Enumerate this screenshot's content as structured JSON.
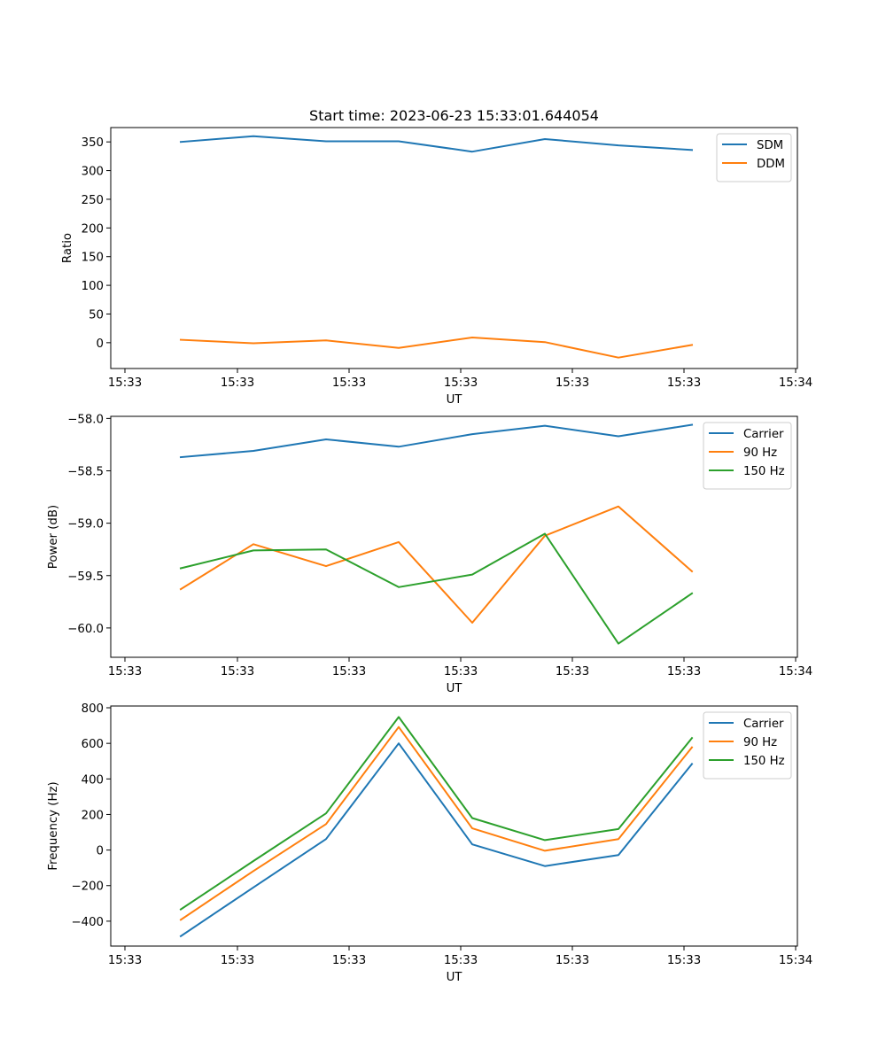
{
  "chart_data": [
    {
      "type": "line",
      "title": "Start time: 2023-06-23 15:33:01.644054",
      "xlabel": "UT",
      "ylabel": "Ratio",
      "x_tick_labels": [
        "15:33",
        "15:33",
        "15:33",
        "15:33",
        "15:33",
        "15:33",
        "15:34"
      ],
      "yticks": [
        0,
        50,
        100,
        150,
        200,
        250,
        300,
        350
      ],
      "ylim": [
        -45,
        375
      ],
      "legend_position": "upper right",
      "series": [
        {
          "name": "SDM",
          "color": "#1f77b4",
          "values": [
            350,
            360,
            351,
            351,
            333,
            355,
            344,
            336
          ]
        },
        {
          "name": "DDM",
          "color": "#ff7f0e",
          "values": [
            5,
            -1,
            4,
            -9,
            9,
            1,
            -26,
            -4
          ]
        }
      ]
    },
    {
      "type": "line",
      "title": "",
      "xlabel": "UT",
      "ylabel": "Power (dB)",
      "x_tick_labels": [
        "15:33",
        "15:33",
        "15:33",
        "15:33",
        "15:33",
        "15:33",
        "15:34"
      ],
      "yticks": [
        -60.0,
        -59.5,
        -59.0,
        -58.5,
        -58.0
      ],
      "ytick_labels": [
        "−60.0",
        "−59.5",
        "−59.0",
        "−58.5",
        "−58.0"
      ],
      "ylim": [
        -60.28,
        -57.98
      ],
      "legend_position": "upper right",
      "series": [
        {
          "name": "Carrier",
          "color": "#1f77b4",
          "values": [
            -58.37,
            -58.31,
            -58.2,
            -58.27,
            -58.15,
            -58.07,
            -58.17,
            -58.06
          ]
        },
        {
          "name": "90 Hz",
          "color": "#ff7f0e",
          "values": [
            -59.63,
            -59.2,
            -59.41,
            -59.18,
            -59.95,
            -59.12,
            -58.84,
            -59.46
          ]
        },
        {
          "name": "150 Hz",
          "color": "#2ca02c",
          "values": [
            -59.43,
            -59.26,
            -59.25,
            -59.61,
            -59.49,
            -59.1,
            -60.15,
            -59.67
          ]
        }
      ]
    },
    {
      "type": "line",
      "title": "",
      "xlabel": "UT",
      "ylabel": "Frequency (Hz)",
      "x_tick_labels": [
        "15:33",
        "15:33",
        "15:33",
        "15:33",
        "15:33",
        "15:33",
        "15:34"
      ],
      "yticks": [
        -400,
        -200,
        0,
        200,
        400,
        600,
        800
      ],
      "ytick_labels": [
        "−400",
        "−200",
        "0",
        "200",
        "400",
        "600",
        "800"
      ],
      "ylim": [
        -540,
        810
      ],
      "legend_position": "upper right",
      "series": [
        {
          "name": "Carrier",
          "color": "#1f77b4",
          "values": [
            -484,
            -210,
            62,
            600,
            32,
            -90,
            -28,
            484
          ]
        },
        {
          "name": "90 Hz",
          "color": "#ff7f0e",
          "values": [
            -392,
            -118,
            146,
            692,
            122,
            -4,
            62,
            578
          ]
        },
        {
          "name": "150 Hz",
          "color": "#2ca02c",
          "values": [
            -334,
            -62,
            206,
            748,
            180,
            56,
            118,
            630
          ]
        }
      ]
    }
  ]
}
